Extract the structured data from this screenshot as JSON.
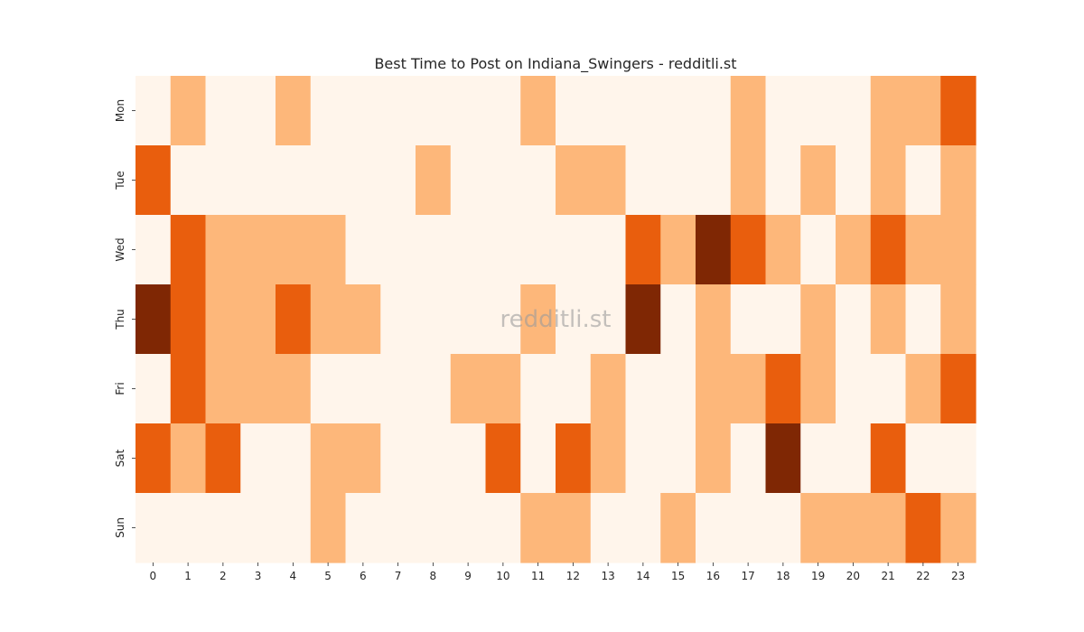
{
  "chart_data": {
    "type": "heatmap",
    "title": "Best Time to Post on Indiana_Swingers - redditli.st",
    "watermark": "redditli.st",
    "x_categories": [
      "0",
      "1",
      "2",
      "3",
      "4",
      "5",
      "6",
      "7",
      "8",
      "9",
      "10",
      "11",
      "12",
      "13",
      "14",
      "15",
      "16",
      "17",
      "18",
      "19",
      "20",
      "21",
      "22",
      "23"
    ],
    "y_categories": [
      "Mon",
      "Tue",
      "Wed",
      "Thu",
      "Fri",
      "Sat",
      "Sun"
    ],
    "values": [
      [
        0,
        1,
        0,
        0,
        1,
        0,
        0,
        0,
        0,
        0,
        0,
        1,
        0,
        0,
        0,
        0,
        0,
        1,
        0,
        0,
        0,
        1,
        1,
        2
      ],
      [
        2,
        0,
        0,
        0,
        0,
        0,
        0,
        0,
        1,
        0,
        0,
        0,
        1,
        1,
        0,
        0,
        0,
        1,
        0,
        1,
        0,
        1,
        0,
        1
      ],
      [
        0,
        2,
        1,
        1,
        1,
        1,
        0,
        0,
        0,
        0,
        0,
        0,
        0,
        0,
        2,
        1,
        3,
        2,
        1,
        0,
        1,
        2,
        1,
        1
      ],
      [
        3,
        2,
        1,
        1,
        2,
        1,
        1,
        0,
        0,
        0,
        0,
        1,
        0,
        0,
        3,
        0,
        1,
        0,
        0,
        1,
        0,
        1,
        0,
        1
      ],
      [
        0,
        2,
        1,
        1,
        1,
        0,
        0,
        0,
        0,
        1,
        1,
        0,
        0,
        1,
        0,
        0,
        1,
        1,
        2,
        1,
        0,
        0,
        1,
        2
      ],
      [
        2,
        1,
        2,
        0,
        0,
        1,
        1,
        0,
        0,
        0,
        2,
        0,
        2,
        1,
        0,
        0,
        1,
        0,
        3,
        0,
        0,
        2,
        0,
        0
      ],
      [
        0,
        0,
        0,
        0,
        0,
        1,
        0,
        0,
        0,
        0,
        0,
        1,
        1,
        0,
        0,
        1,
        0,
        0,
        0,
        1,
        1,
        1,
        2,
        1
      ]
    ],
    "colors": [
      "#fff5eb",
      "#fdb77a",
      "#e95e0d",
      "#7f2704"
    ],
    "grid": false,
    "legend": "none"
  }
}
